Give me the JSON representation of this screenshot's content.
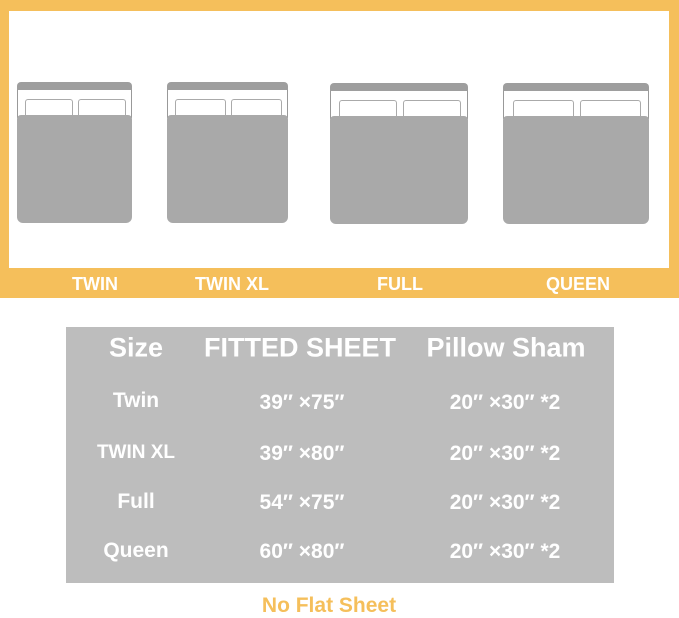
{
  "colors": {
    "accent": "#f5bf5b",
    "table_bg": "#bdbdbd",
    "bed_gray": "#a9a9a9"
  },
  "beds": [
    {
      "label": "TWIN"
    },
    {
      "label": "TWIN XL"
    },
    {
      "label": "FULL"
    },
    {
      "label": "QUEEN"
    }
  ],
  "table": {
    "headers": [
      "Size",
      "FITTED SHEET",
      "Pillow Sham"
    ],
    "rows": [
      [
        "Twin",
        "39″ ×75″",
        "20″ ×30″ *2"
      ],
      [
        "TWIN XL",
        "39″ ×80″",
        "20″ ×30″ *2"
      ],
      [
        "Full",
        "54″ ×75″",
        "20″ ×30″ *2"
      ],
      [
        "Queen",
        "60″ ×80″",
        "20″ ×30″ *2"
      ]
    ]
  },
  "note": "No Flat Sheet"
}
